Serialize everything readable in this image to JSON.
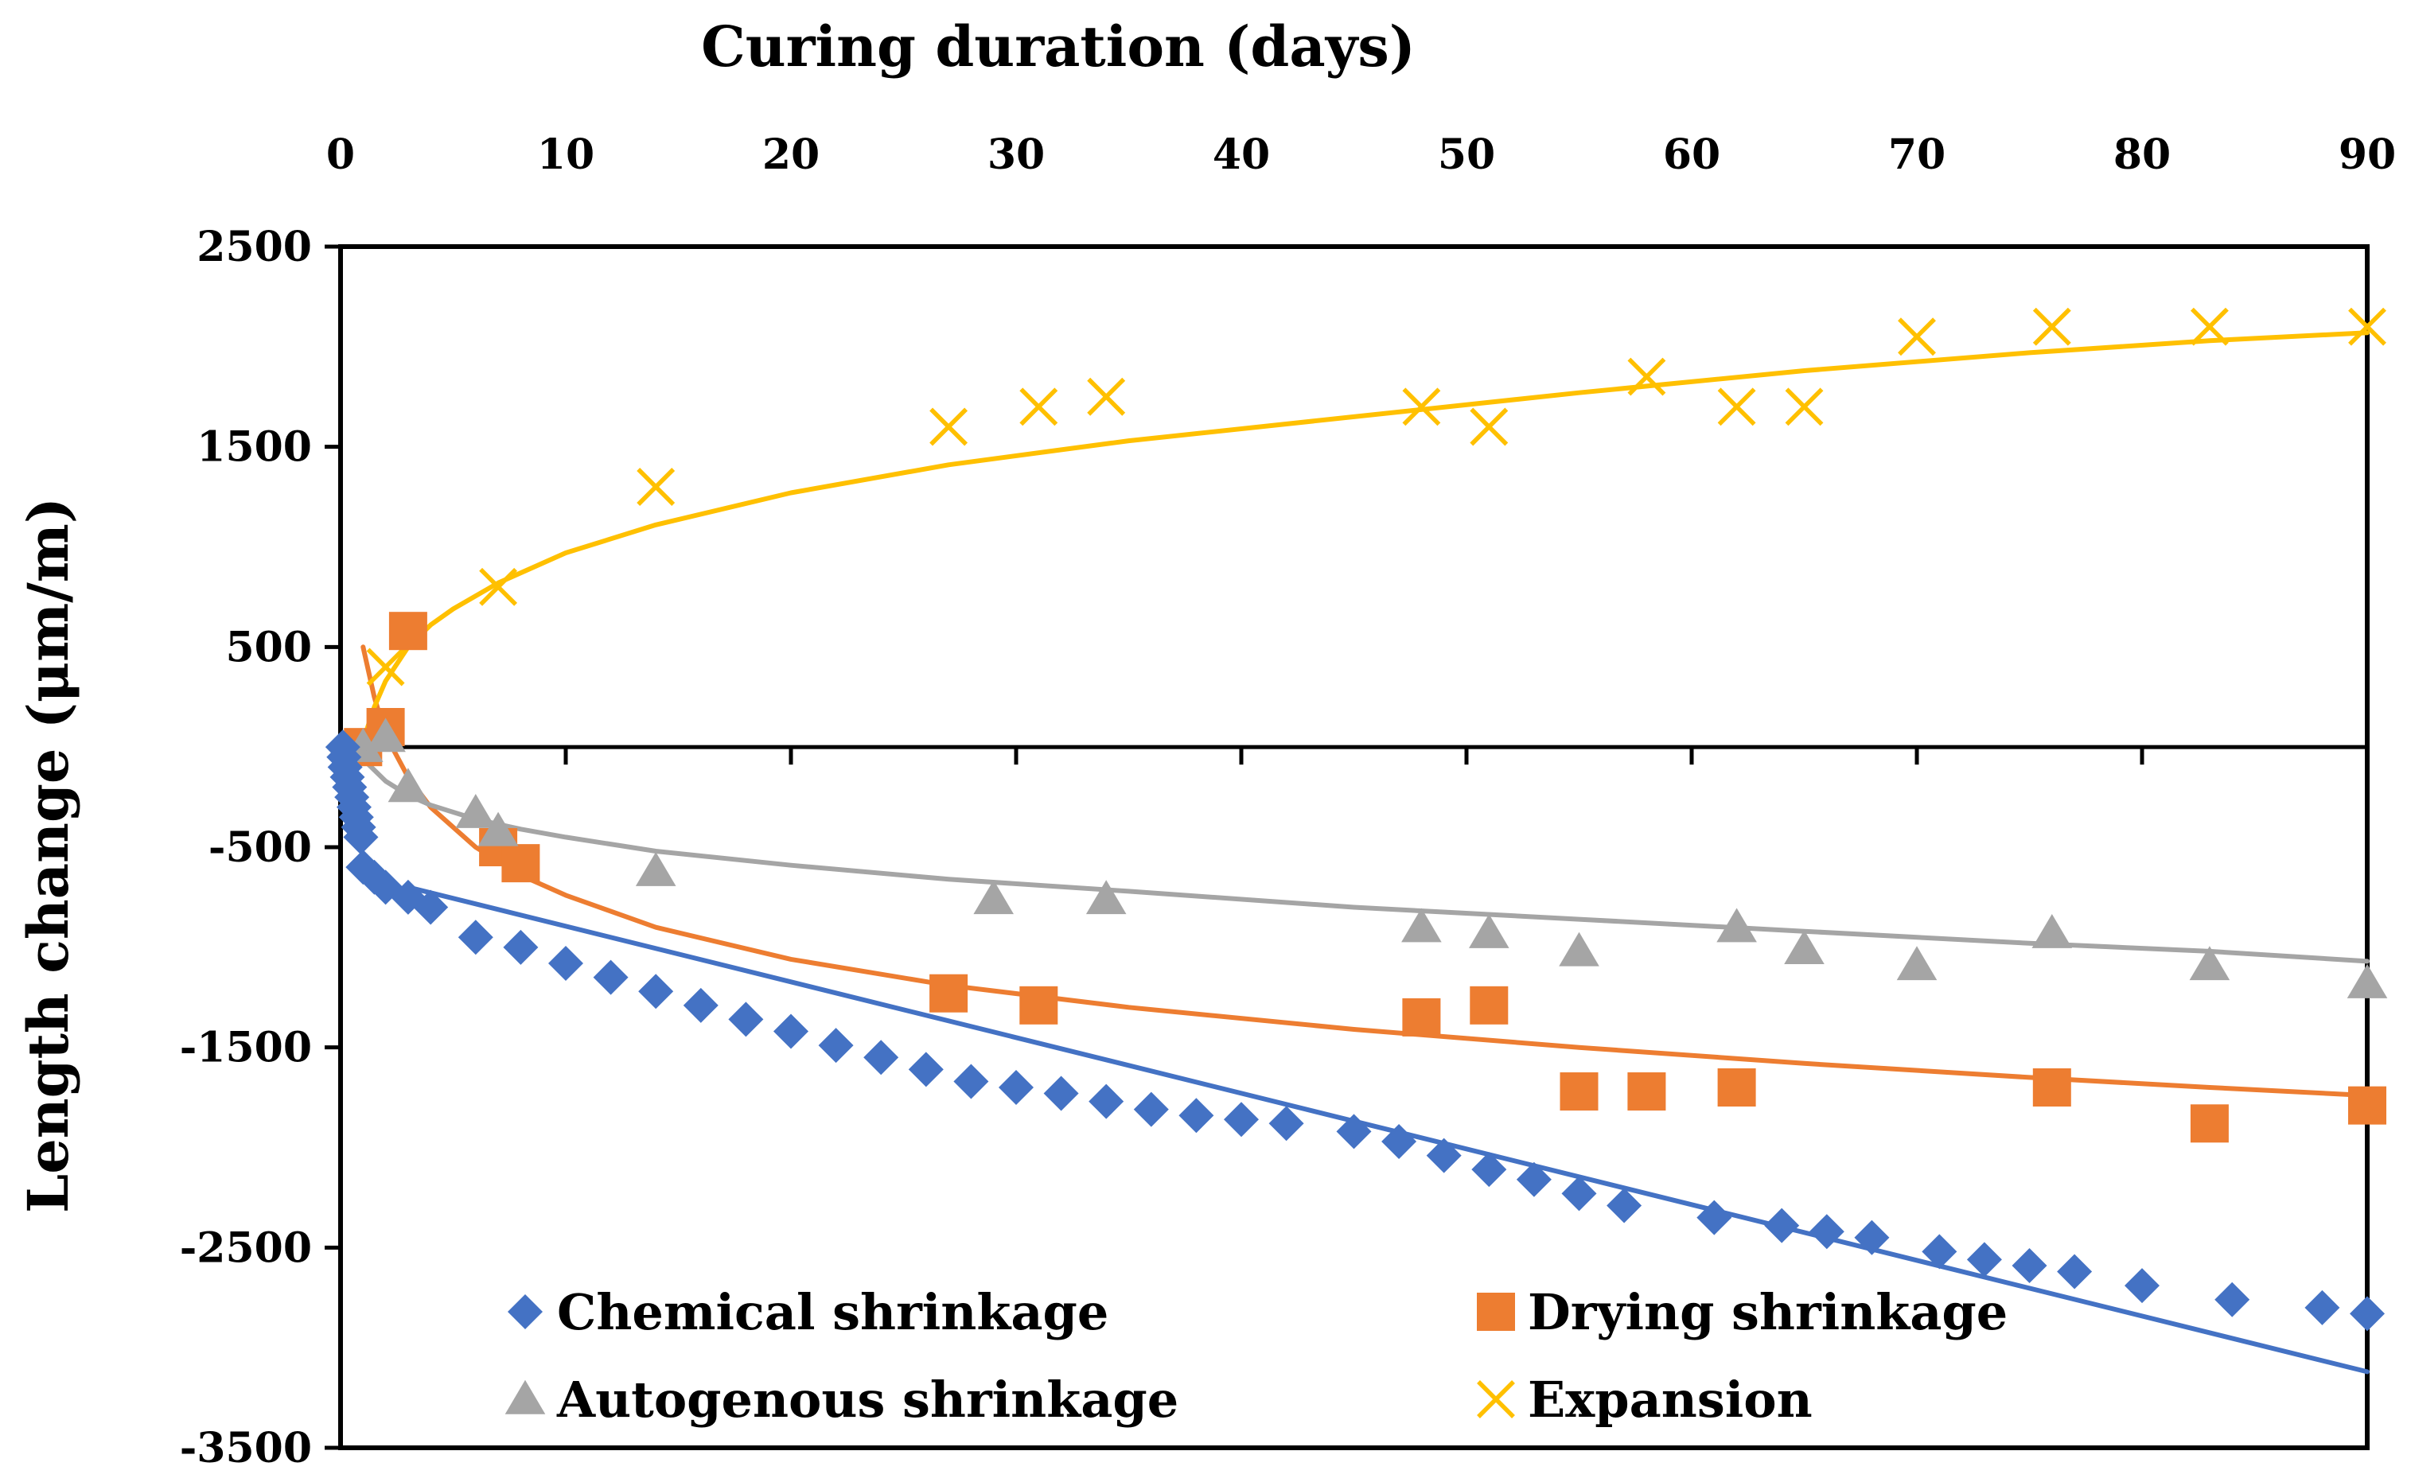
{
  "chart_data": {
    "type": "scatter",
    "title": "",
    "xlabel": "Curing duration (days)",
    "ylabel": "Length change (μm/m)",
    "xlim": [
      0,
      90
    ],
    "ylim": [
      -3500,
      2500
    ],
    "x_ticks": [
      0,
      10,
      20,
      30,
      40,
      50,
      60,
      70,
      80,
      90
    ],
    "y_ticks": [
      2500,
      1500,
      500,
      -500,
      -1500,
      -2500,
      -3500
    ],
    "x_axis_position": "top",
    "grid": false,
    "legend_position": "bottom",
    "series": [
      {
        "name": "Chemical shrinkage",
        "marker": "diamond",
        "color": "#4472C4",
        "x": [
          0.1,
          0.15,
          0.2,
          0.3,
          0.4,
          0.5,
          0.6,
          0.7,
          0.8,
          0.9,
          1,
          1.5,
          2,
          3,
          4,
          6,
          8,
          10,
          12,
          14,
          16,
          18,
          20,
          22,
          24,
          26,
          28,
          30,
          32,
          34,
          36,
          38,
          40,
          42,
          45,
          47,
          49,
          51,
          53,
          55,
          57,
          61,
          64,
          66,
          68,
          71,
          73,
          75,
          77,
          80,
          84,
          88,
          90
        ],
        "y": [
          0,
          -50,
          -100,
          -150,
          -200,
          -250,
          -300,
          -350,
          -400,
          -450,
          -600,
          -650,
          -700,
          -750,
          -800,
          -950,
          -1000,
          -1080,
          -1150,
          -1220,
          -1290,
          -1360,
          -1420,
          -1490,
          -1550,
          -1610,
          -1670,
          -1700,
          -1730,
          -1770,
          -1810,
          -1840,
          -1860,
          -1880,
          -1920,
          -1970,
          -2040,
          -2110,
          -2160,
          -2230,
          -2290,
          -2350,
          -2390,
          -2420,
          -2450,
          -2520,
          -2560,
          -2590,
          -2620,
          -2690,
          -2760,
          -2800,
          -2830
        ]
      },
      {
        "name": "Drying shrinkage",
        "marker": "square",
        "color": "#ED7D31",
        "x": [
          1,
          2,
          3,
          7,
          8,
          27,
          31,
          48,
          51,
          55,
          58,
          62,
          76,
          83,
          90
        ],
        "y": [
          0,
          100,
          580,
          -500,
          -580,
          -1230,
          -1290,
          -1350,
          -1290,
          -1720,
          -1720,
          -1700,
          -1700,
          -1880,
          -1790
        ]
      },
      {
        "name": "Autogenous shrinkage",
        "marker": "triangle",
        "color": "#A5A5A5",
        "x": [
          1,
          2,
          3,
          6,
          7,
          14,
          29,
          34,
          48,
          51,
          55,
          62,
          65,
          70,
          76,
          83,
          90
        ],
        "y": [
          0,
          50,
          -200,
          -330,
          -420,
          -620,
          -760,
          -760,
          -900,
          -930,
          -1020,
          -900,
          -1010,
          -1090,
          -930,
          -1090,
          -1180
        ]
      },
      {
        "name": "Expansion",
        "marker": "x",
        "color": "#FFC000",
        "x": [
          1,
          2,
          7,
          14,
          27,
          31,
          34,
          48,
          51,
          58,
          62,
          65,
          70,
          76,
          83,
          90
        ],
        "y": [
          0,
          400,
          800,
          1300,
          1600,
          1700,
          1750,
          1700,
          1600,
          1850,
          1700,
          1700,
          2050,
          2100,
          2100,
          2100
        ]
      }
    ],
    "trendlines": [
      {
        "series": "Chemical shrinkage",
        "type": "linear",
        "color": "#4472C4",
        "x": [
          3,
          90
        ],
        "y": [
          -700,
          -3120
        ]
      },
      {
        "series": "Drying shrinkage",
        "type": "logarithmic",
        "color": "#ED7D31",
        "x": [
          1,
          1.5,
          2,
          3,
          4,
          6,
          8,
          10,
          14,
          20,
          27,
          35,
          45,
          55,
          65,
          75,
          83,
          90
        ],
        "y": [
          500,
          250,
          60,
          -150,
          -300,
          -500,
          -640,
          -740,
          -900,
          -1060,
          -1190,
          -1300,
          -1410,
          -1500,
          -1580,
          -1650,
          -1700,
          -1740
        ]
      },
      {
        "series": "Autogenous shrinkage",
        "type": "logarithmic",
        "color": "#A5A5A5",
        "x": [
          1,
          2,
          3,
          4,
          6,
          8,
          10,
          14,
          20,
          27,
          35,
          45,
          55,
          65,
          75,
          83,
          90
        ],
        "y": [
          -60,
          -170,
          -240,
          -290,
          -360,
          -410,
          -450,
          -520,
          -590,
          -660,
          -720,
          -800,
          -860,
          -920,
          -980,
          -1020,
          -1070
        ]
      },
      {
        "series": "Expansion",
        "type": "logarithmic",
        "color": "#FFC000",
        "x": [
          1,
          1.5,
          2,
          3,
          4,
          5,
          7,
          10,
          14,
          20,
          27,
          35,
          45,
          55,
          65,
          75,
          83,
          90
        ],
        "y": [
          30,
          200,
          330,
          500,
          610,
          690,
          820,
          970,
          1110,
          1270,
          1410,
          1530,
          1650,
          1770,
          1880,
          1970,
          2030,
          2070
        ]
      }
    ]
  }
}
